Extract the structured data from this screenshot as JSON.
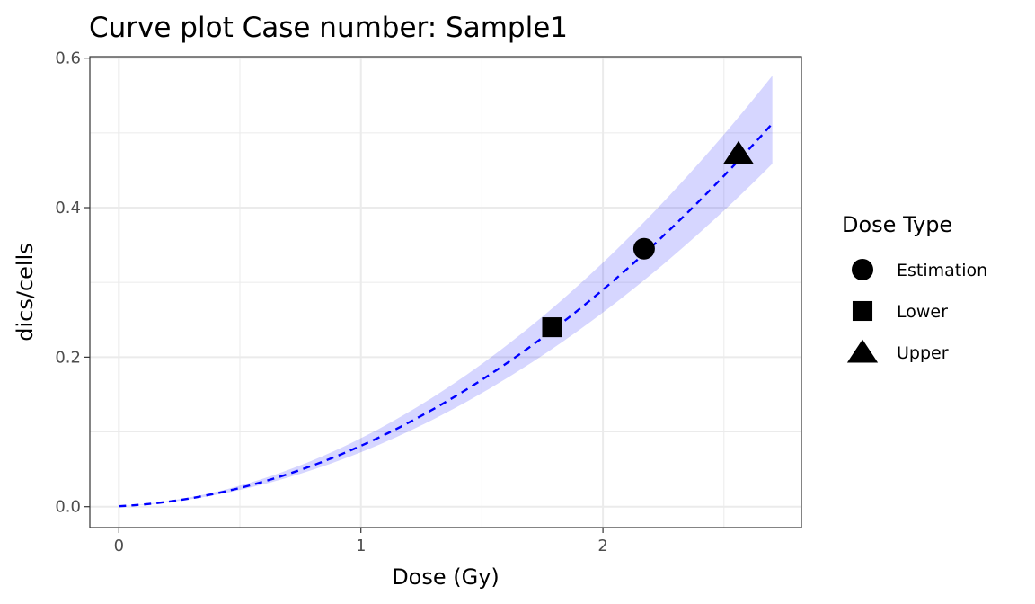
{
  "chart_data": {
    "type": "line",
    "title": "Curve plot Case number:  Sample1",
    "xlabel": "Dose (Gy)",
    "ylabel": "dics/cells",
    "xlim": [
      -0.12,
      2.82
    ],
    "ylim": [
      -0.028,
      0.602
    ],
    "x_ticks": [
      0,
      1,
      2
    ],
    "x_tick_labels": [
      "0",
      "1",
      "2"
    ],
    "x_minor_ticks": [
      0.5,
      1.5,
      2.5
    ],
    "y_ticks": [
      0.0,
      0.2,
      0.4,
      0.6
    ],
    "y_tick_labels": [
      "0.0",
      "0.2",
      "0.4",
      "0.6"
    ],
    "y_minor_ticks": [
      0.1,
      0.3,
      0.5
    ],
    "grid": true,
    "curve": {
      "x_range": [
        0,
        2.7
      ],
      "model": "y = 0.0006 + 0.0168*x + 0.0640*x^2",
      "coefficients": [
        0.0006,
        0.0168,
        0.064
      ],
      "band": {
        "lower_factor": 0.895,
        "upper_factor": 1.125
      },
      "line_style": "dashed",
      "line_color": "#0000ff",
      "band_color": "#0000ff",
      "band_opacity": 0.16
    },
    "points": [
      {
        "label": "Estimation",
        "x": 2.17,
        "y": 0.345,
        "shape": "circle"
      },
      {
        "label": "Lower",
        "x": 1.79,
        "y": 0.24,
        "shape": "square"
      },
      {
        "label": "Upper",
        "x": 2.56,
        "y": 0.472,
        "shape": "triangle"
      }
    ],
    "legend": {
      "title": "Dose Type",
      "placement": "right",
      "entries": [
        {
          "label": "Estimation",
          "shape": "circle"
        },
        {
          "label": "Lower",
          "shape": "square"
        },
        {
          "label": "Upper",
          "shape": "triangle"
        }
      ]
    }
  }
}
